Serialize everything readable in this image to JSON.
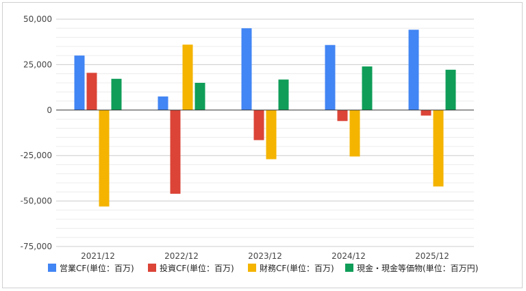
{
  "chart_data": {
    "type": "bar",
    "categories": [
      "2021/12",
      "2022/12",
      "2023/12",
      "2024/12",
      "2025/12"
    ],
    "series": [
      {
        "name": "営業CF(単位：百万)",
        "color": "#4285f4",
        "values": [
          30000,
          7500,
          45000,
          35800,
          44200
        ]
      },
      {
        "name": "投資CF(単位：百万)",
        "color": "#db4437",
        "values": [
          20500,
          -46000,
          -16500,
          -6000,
          -3000
        ]
      },
      {
        "name": "財務CF(単位：百万)",
        "color": "#f4b400",
        "values": [
          -53000,
          36000,
          -27000,
          -25500,
          -42000
        ]
      },
      {
        "name": "現金・現金等価物(単位：百万円)",
        "color": "#0f9d58",
        "values": [
          17200,
          15000,
          16800,
          24000,
          22200
        ]
      }
    ],
    "ylim": [
      -75000,
      50000
    ],
    "ytick_values": [
      50000,
      25000,
      0,
      -25000,
      -50000,
      -75000
    ],
    "yticks": [
      "50,000",
      "25,000",
      "0",
      "-25,000",
      "-50,000",
      "-75,000"
    ],
    "minor_grid_step": 5000,
    "grid": true,
    "legend_position": "bottom",
    "title": "",
    "xlabel": "",
    "ylabel": ""
  }
}
